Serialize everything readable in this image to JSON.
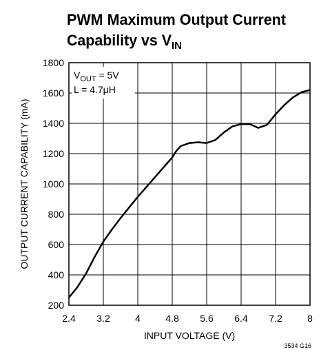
{
  "chart_data": {
    "type": "line",
    "title": "PWM Maximum Output Current",
    "title_line2": "Capability vs V",
    "title_line2_sub": "IN",
    "annotation_1": "V",
    "annotation_1_sub": "OUT",
    "annotation_1_rest": " = 5V",
    "annotation_2": "L = 4.7μH",
    "x_label": "INPUT VOLTAGE (V)",
    "y_label": "OUTPUT CURRENT CAPABILITY (mA)",
    "footnote": "3534 G16",
    "x": [
      2.4,
      2.6,
      2.8,
      3.0,
      3.2,
      3.4,
      3.6,
      3.8,
      4.0,
      4.2,
      4.4,
      4.6,
      4.8,
      4.9,
      5.0,
      5.2,
      5.4,
      5.6,
      5.8,
      6.0,
      6.2,
      6.4,
      6.6,
      6.8,
      7.0,
      7.2,
      7.4,
      7.6,
      7.8,
      8.0
    ],
    "series": [
      {
        "color": "#000000",
        "values": [
          250,
          320,
          410,
          520,
          620,
          700,
          775,
          845,
          915,
          980,
          1045,
          1110,
          1175,
          1220,
          1250,
          1270,
          1275,
          1270,
          1290,
          1340,
          1380,
          1395,
          1395,
          1370,
          1390,
          1460,
          1520,
          1570,
          1605,
          1620
        ]
      }
    ],
    "xlim": [
      2.4,
      8
    ],
    "ylim": [
      200,
      1800
    ],
    "xticks": [
      2.4,
      3.2,
      4,
      4.8,
      5.6,
      6.4,
      7.2,
      8
    ],
    "yticks": [
      200,
      400,
      600,
      800,
      1000,
      1200,
      1400,
      1600,
      1800
    ],
    "grid": true
  }
}
